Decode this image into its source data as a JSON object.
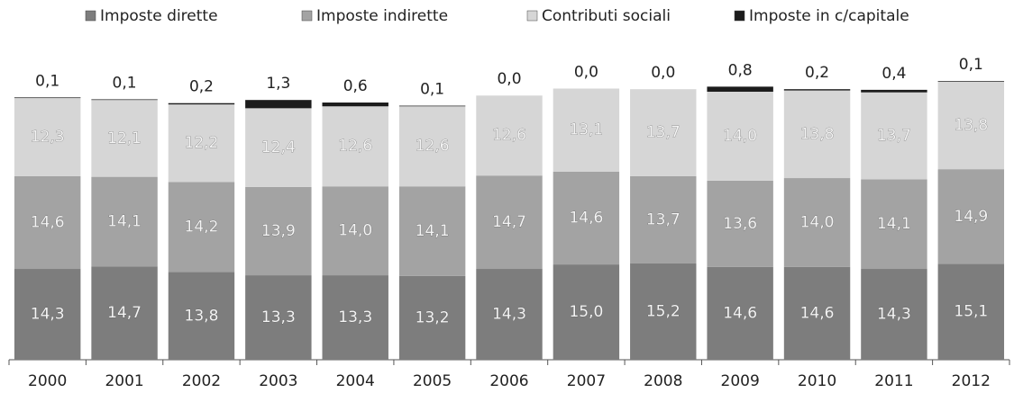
{
  "chart_data": {
    "type": "stacked-bar",
    "categories": [
      "2000",
      "2001",
      "2002",
      "2003",
      "2004",
      "2005",
      "2006",
      "2007",
      "2008",
      "2009",
      "2010",
      "2011",
      "2012"
    ],
    "series": [
      {
        "name": "Imposte dirette",
        "color": "#7d7d7d",
        "values": [
          14.3,
          14.7,
          13.8,
          13.3,
          13.3,
          13.2,
          14.3,
          15.0,
          15.2,
          14.6,
          14.6,
          14.3,
          15.1
        ],
        "value_labels": [
          "14,3",
          "14,7",
          "13,8",
          "13,3",
          "13,3",
          "13,2",
          "14,3",
          "15,0",
          "15,2",
          "14,6",
          "14,6",
          "14,3",
          "15,1"
        ]
      },
      {
        "name": "Imposte indirette",
        "color": "#a3a3a3",
        "values": [
          14.6,
          14.1,
          14.2,
          13.9,
          14.0,
          14.1,
          14.7,
          14.6,
          13.7,
          13.6,
          14.0,
          14.1,
          14.9
        ],
        "value_labels": [
          "14,6",
          "14,1",
          "14,2",
          "13,9",
          "14,0",
          "14,1",
          "14,7",
          "14,6",
          "13,7",
          "13,6",
          "14,0",
          "14,1",
          "14,9"
        ]
      },
      {
        "name": "Contributi sociali",
        "color": "#d6d6d6",
        "values": [
          12.3,
          12.1,
          12.2,
          12.4,
          12.6,
          12.6,
          12.6,
          13.1,
          13.7,
          14.0,
          13.8,
          13.7,
          13.8
        ],
        "value_labels": [
          "12,3",
          "12,1",
          "12,2",
          "12,4",
          "12,6",
          "12,6",
          "12,6",
          "13,1",
          "13,7",
          "14,0",
          "13,8",
          "13,7",
          "13,8"
        ]
      },
      {
        "name": "Imposte in c/capitale",
        "color": "#1c1c1c",
        "values": [
          0.1,
          0.1,
          0.2,
          1.3,
          0.6,
          0.1,
          0.0,
          0.0,
          0.0,
          0.8,
          0.2,
          0.4,
          0.1
        ],
        "value_labels": [
          "0,1",
          "0,1",
          "0,2",
          "1,3",
          "0,6",
          "0,1",
          "0,0",
          "0,0",
          "0,0",
          "0,8",
          "0,2",
          "0,4",
          "0,1"
        ]
      }
    ]
  }
}
